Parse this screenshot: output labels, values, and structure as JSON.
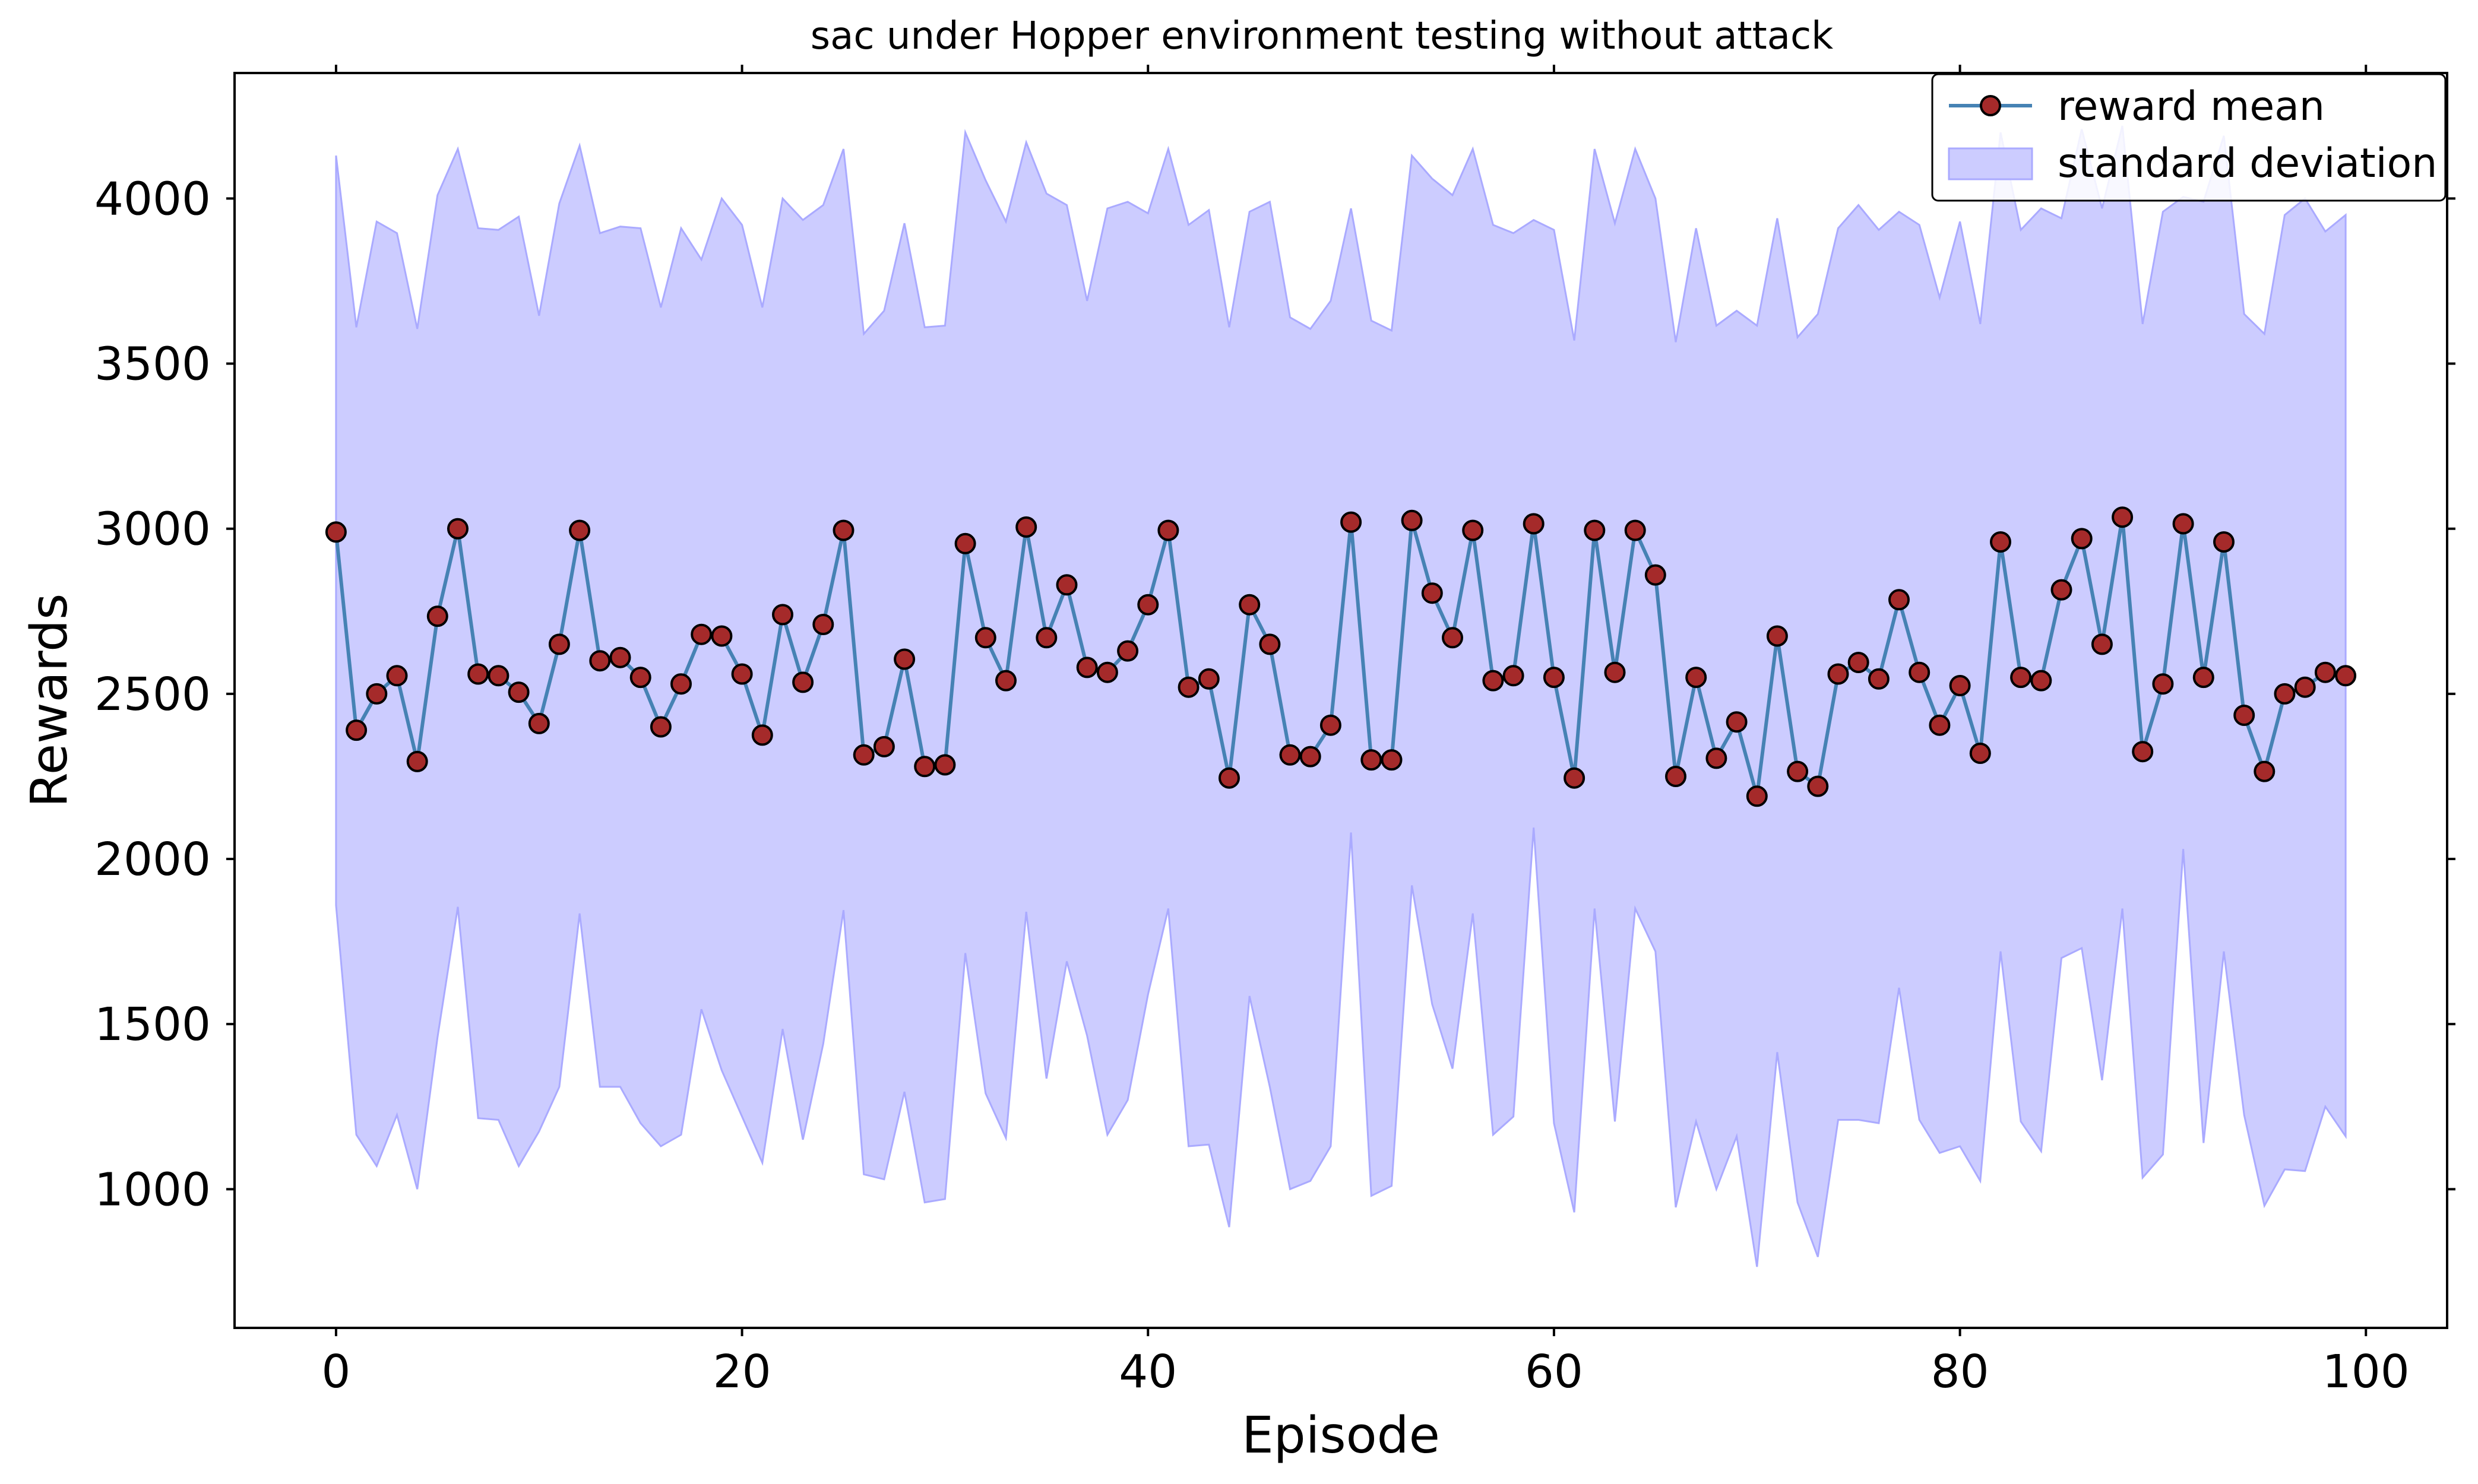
{
  "chart_data": {
    "type": "line",
    "title": "sac under Hopper environment testing without attack",
    "xlabel": "Episode",
    "ylabel": "Rewards",
    "xlim": [
      -5,
      104
    ],
    "ylim": [
      580,
      4380
    ],
    "xticks": [
      0,
      20,
      40,
      60,
      80,
      100
    ],
    "yticks": [
      1000,
      1500,
      2000,
      2500,
      3000,
      3500,
      4000
    ],
    "xtick_labels": [
      "0",
      "20",
      "40",
      "60",
      "80",
      "100"
    ],
    "ytick_labels": [
      "1000",
      "1500",
      "2000",
      "2500",
      "3000",
      "3500",
      "4000"
    ],
    "grid": false,
    "legend_position": "top-right",
    "colors": {
      "line": "#4682b4",
      "marker_fill": "#a52a2a",
      "marker_edge": "#000000",
      "band_fill": "#ccccff",
      "band_edge": "#aaaaff"
    },
    "x": [
      0,
      1,
      2,
      3,
      4,
      5,
      6,
      7,
      8,
      9,
      10,
      11,
      12,
      13,
      14,
      15,
      16,
      17,
      18,
      19,
      20,
      21,
      22,
      23,
      24,
      25,
      26,
      27,
      28,
      29,
      30,
      31,
      32,
      33,
      34,
      35,
      36,
      37,
      38,
      39,
      40,
      41,
      42,
      43,
      44,
      45,
      46,
      47,
      48,
      49,
      50,
      51,
      52,
      53,
      54,
      55,
      56,
      57,
      58,
      59,
      60,
      61,
      62,
      63,
      64,
      65,
      66,
      67,
      68,
      69,
      70,
      71,
      72,
      73,
      74,
      75,
      76,
      77,
      78,
      79,
      80,
      81,
      82,
      83,
      84,
      85,
      86,
      87,
      88,
      89,
      90,
      91,
      92,
      93,
      94,
      95,
      96,
      97,
      98,
      99
    ],
    "series": [
      {
        "name": "reward mean",
        "values": [
          2990,
          2390,
          2500,
          2555,
          2295,
          2735,
          3000,
          2560,
          2555,
          2505,
          2410,
          2650,
          2995,
          2600,
          2610,
          2550,
          2400,
          2530,
          2680,
          2675,
          2560,
          2375,
          2740,
          2535,
          2710,
          2995,
          2315,
          2340,
          2605,
          2280,
          2285,
          2955,
          2670,
          2540,
          3005,
          2670,
          2830,
          2580,
          2565,
          2630,
          2770,
          2995,
          2520,
          2545,
          2245,
          2770,
          2650,
          2315,
          2310,
          2405,
          3020,
          2300,
          2300,
          3025,
          2805,
          2670,
          2995,
          2540,
          2555,
          3015,
          2550,
          2245,
          2995,
          2565,
          2995,
          2860,
          2250,
          2550,
          2305,
          2415,
          2190,
          2675,
          2265,
          2220,
          2560,
          2595,
          2545,
          2785,
          2565,
          2405,
          2525,
          2320,
          2960,
          2550,
          2540,
          2815,
          2970,
          2650,
          3035,
          2325,
          2530,
          3015,
          2550,
          2960,
          2435,
          2265,
          2500,
          2520,
          2565,
          2555
        ]
      },
      {
        "name": "standard deviation",
        "upper": [
          4130,
          3610,
          3930,
          3895,
          3605,
          4010,
          4150,
          3910,
          3905,
          3945,
          3645,
          3985,
          4160,
          3895,
          3915,
          3910,
          3670,
          3910,
          3815,
          4000,
          3920,
          3670,
          4000,
          3935,
          3980,
          4150,
          3590,
          3660,
          3925,
          3610,
          3615,
          4200,
          4055,
          3930,
          4170,
          4015,
          3980,
          3690,
          3970,
          3990,
          3955,
          4150,
          3920,
          3965,
          3610,
          3960,
          3990,
          3640,
          3605,
          3690,
          3970,
          3630,
          3600,
          4130,
          4060,
          4010,
          4150,
          3920,
          3895,
          3935,
          3905,
          3570,
          4150,
          3925,
          4150,
          4000,
          3565,
          3910,
          3615,
          3660,
          3615,
          3940,
          3580,
          3650,
          3910,
          3980,
          3905,
          3960,
          3920,
          3700,
          3930,
          3620,
          4200,
          3905,
          3970,
          3940,
          4210,
          3970,
          4220,
          3620,
          3960,
          4005,
          3990,
          4190,
          3650,
          3590,
          3950,
          4000,
          3900,
          3950
        ],
        "lower": [
          1860,
          1165,
          1070,
          1225,
          1000,
          1460,
          1855,
          1215,
          1210,
          1070,
          1175,
          1310,
          1835,
          1310,
          1310,
          1200,
          1130,
          1165,
          1545,
          1360,
          1220,
          1080,
          1485,
          1150,
          1440,
          1845,
          1045,
          1030,
          1295,
          960,
          970,
          1715,
          1290,
          1155,
          1840,
          1335,
          1690,
          1465,
          1165,
          1270,
          1590,
          1850,
          1130,
          1135,
          885,
          1585,
          1310,
          1000,
          1025,
          1130,
          2080,
          980,
          1010,
          1920,
          1560,
          1365,
          1835,
          1165,
          1220,
          2095,
          1200,
          930,
          1850,
          1205,
          1850,
          1720,
          945,
          1205,
          1000,
          1160,
          765,
          1415,
          960,
          795,
          1210,
          1210,
          1200,
          1610,
          1210,
          1110,
          1130,
          1025,
          1720,
          1205,
          1115,
          1700,
          1730,
          1330,
          1850,
          1035,
          1105,
          2030,
          1140,
          1720,
          1225,
          950,
          1060,
          1055,
          1250,
          1160
        ]
      }
    ]
  }
}
